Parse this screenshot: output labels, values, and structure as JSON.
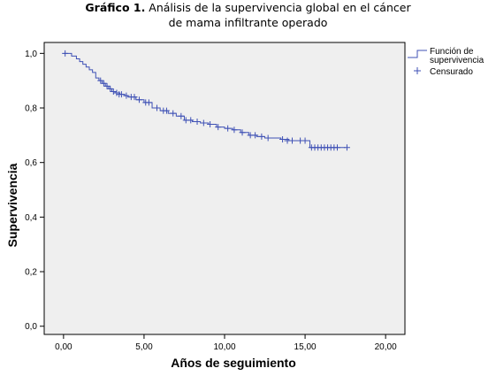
{
  "caption": {
    "bold": "Gráfico 1.",
    "line1_rest": " Análisis de la supervivencia global en el cáncer",
    "line2": "de mama  infiltrante operado"
  },
  "colors": {
    "plot_background": "#efefef",
    "curve": "#3f51b5",
    "axis": "#000000"
  },
  "legend": {
    "survival_line1": "Función de",
    "survival_line2": "supervivencia",
    "censored": "Censurado"
  },
  "chart_data": {
    "type": "line",
    "subtype": "kaplan-meier",
    "xlabel": "Años de seguimiento",
    "ylabel": "Supervivencia",
    "xlim": [
      -1.2,
      21.2
    ],
    "ylim": [
      -0.03,
      1.04
    ],
    "x_ticks": [
      0,
      5,
      10,
      15,
      20
    ],
    "x_tick_labels": [
      "0,00",
      "5,00",
      "10,00",
      "15,00",
      "20,00"
    ],
    "y_ticks": [
      0.0,
      0.2,
      0.4,
      0.6,
      0.8,
      1.0
    ],
    "y_tick_labels": [
      "0,0",
      "0,2",
      "0,4",
      "0,6",
      "0,8",
      "1,0"
    ],
    "grid": false,
    "legend_position": "right",
    "series": [
      {
        "name": "Función de supervivencia",
        "x": [
          0,
          0.5,
          0.8,
          1.0,
          1.2,
          1.4,
          1.6,
          1.8,
          2.0,
          2.2,
          2.4,
          2.6,
          2.8,
          3.0,
          3.2,
          3.5,
          3.8,
          4.0,
          4.5,
          5.0,
          5.5,
          6.0,
          6.5,
          7.0,
          7.5,
          8.0,
          8.5,
          9.0,
          9.5,
          10.0,
          10.5,
          11.0,
          11.5,
          12.0,
          12.5,
          13.0,
          13.5,
          14.0,
          14.5,
          15.0,
          15.3,
          16.0,
          16.5,
          17.0,
          17.5
        ],
        "y": [
          1.0,
          0.99,
          0.98,
          0.97,
          0.96,
          0.95,
          0.94,
          0.93,
          0.91,
          0.9,
          0.89,
          0.88,
          0.87,
          0.86,
          0.855,
          0.85,
          0.845,
          0.84,
          0.83,
          0.82,
          0.8,
          0.79,
          0.78,
          0.77,
          0.755,
          0.75,
          0.745,
          0.74,
          0.73,
          0.725,
          0.72,
          0.71,
          0.7,
          0.695,
          0.69,
          0.69,
          0.685,
          0.68,
          0.68,
          0.68,
          0.655,
          0.655,
          0.655,
          0.655,
          0.655
        ]
      },
      {
        "name": "Censurado",
        "x": [
          0.1,
          2.3,
          2.5,
          2.7,
          2.9,
          3.1,
          3.3,
          3.45,
          3.6,
          3.9,
          4.2,
          4.4,
          4.7,
          5.1,
          5.3,
          5.8,
          6.2,
          6.4,
          6.8,
          7.3,
          7.6,
          7.9,
          8.3,
          8.7,
          9.1,
          9.6,
          10.2,
          10.6,
          11.1,
          11.6,
          11.9,
          12.3,
          12.7,
          13.6,
          13.9,
          14.2,
          14.7,
          15.0,
          15.4,
          15.6,
          15.8,
          16.0,
          16.2,
          16.4,
          16.6,
          16.8,
          17.0,
          17.6
        ],
        "y": [
          1.0,
          0.9,
          0.89,
          0.88,
          0.87,
          0.86,
          0.855,
          0.85,
          0.85,
          0.845,
          0.84,
          0.84,
          0.83,
          0.82,
          0.82,
          0.8,
          0.79,
          0.79,
          0.78,
          0.77,
          0.755,
          0.755,
          0.75,
          0.745,
          0.74,
          0.73,
          0.725,
          0.72,
          0.71,
          0.7,
          0.7,
          0.695,
          0.69,
          0.685,
          0.68,
          0.68,
          0.68,
          0.68,
          0.655,
          0.655,
          0.655,
          0.655,
          0.655,
          0.655,
          0.655,
          0.655,
          0.655,
          0.655
        ]
      }
    ]
  }
}
